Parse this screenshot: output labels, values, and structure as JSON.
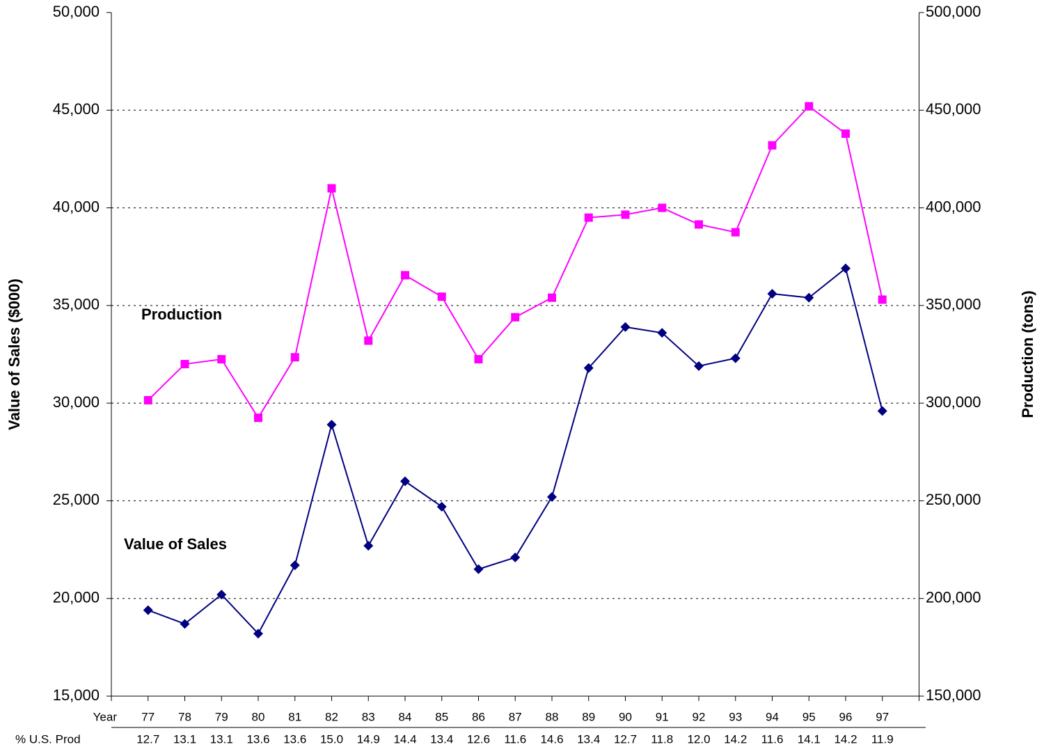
{
  "chart_data": {
    "type": "line",
    "ylabel": "Value of Sales ($000)",
    "y2label": "Production (tons)",
    "categories": [
      "77",
      "78",
      "79",
      "80",
      "81",
      "82",
      "83",
      "84",
      "85",
      "86",
      "87",
      "88",
      "89",
      "90",
      "91",
      "92",
      "93",
      "94",
      "95",
      "96",
      "97"
    ],
    "category_row_label": "Year",
    "share_row_label": "% U.S. Prod",
    "share_row": [
      "12.7",
      "13.1",
      "13.1",
      "13.6",
      "13.6",
      "15.0",
      "14.9",
      "14.4",
      "13.4",
      "12.6",
      "11.6",
      "14.6",
      "13.4",
      "12.7",
      "11.8",
      "12.0",
      "14.2",
      "11.6",
      "14.1",
      "14.2",
      "11.9"
    ],
    "series": [
      {
        "name": "Value of Sales",
        "color": "#000080",
        "marker": "diamond",
        "values": [
          19400,
          18700,
          20200,
          18200,
          21700,
          28900,
          22700,
          26000,
          24700,
          21500,
          22100,
          25200,
          31800,
          33900,
          33600,
          31900,
          32300,
          35600,
          35400,
          36900,
          29600
        ]
      },
      {
        "name": "Production",
        "color": "#ff00ff",
        "marker": "square",
        "axis": "y2",
        "values": [
          301500,
          320000,
          322500,
          292500,
          323500,
          410000,
          332000,
          365500,
          354500,
          322500,
          344000,
          354000,
          395000,
          396500,
          400000,
          391500,
          387500,
          432000,
          452000,
          438000,
          353000
        ]
      }
    ],
    "ylim": [
      15000,
      50000
    ],
    "yticks": [
      {
        "value": 15000,
        "label": "15,000"
      },
      {
        "value": 20000,
        "label": "20,000"
      },
      {
        "value": 25000,
        "label": "25,000"
      },
      {
        "value": 30000,
        "label": "30,000"
      },
      {
        "value": 35000,
        "label": "35,000"
      },
      {
        "value": 40000,
        "label": "40,000"
      },
      {
        "value": 45000,
        "label": "45,000"
      },
      {
        "value": 50000,
        "label": "50,000"
      }
    ],
    "y2lim": [
      150000,
      500000
    ],
    "y2ticks": [
      {
        "value": 150000,
        "label": "150,000"
      },
      {
        "value": 200000,
        "label": "200,000"
      },
      {
        "value": 250000,
        "label": "250,000"
      },
      {
        "value": 300000,
        "label": "300,000"
      },
      {
        "value": 350000,
        "label": "350,000"
      },
      {
        "value": 400000,
        "label": "400,000"
      },
      {
        "value": 450000,
        "label": "450,000"
      },
      {
        "value": 500000,
        "label": "500,000"
      }
    ],
    "grid": true
  }
}
